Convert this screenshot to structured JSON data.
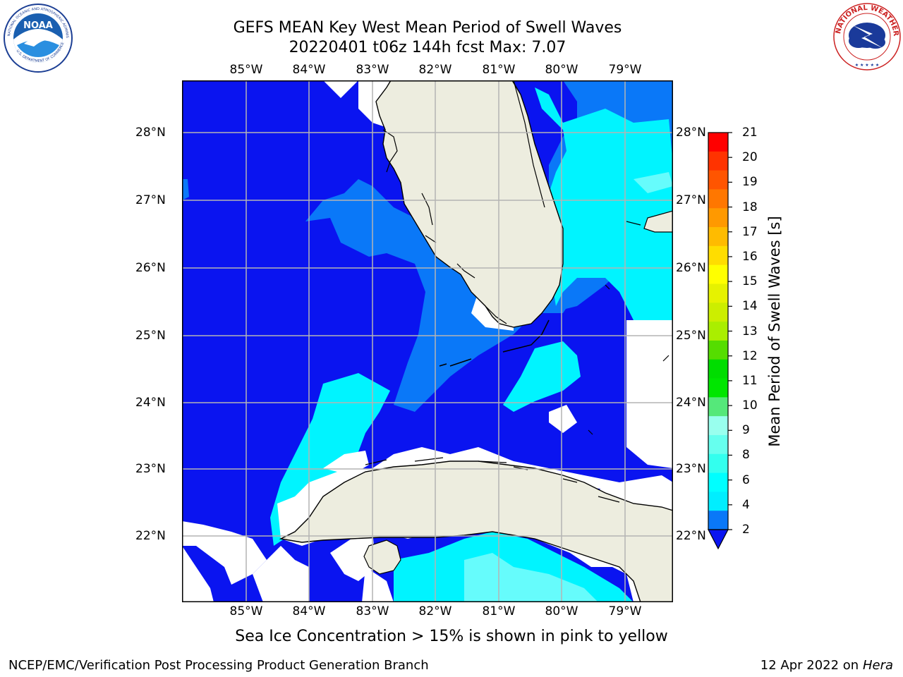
{
  "header": {
    "title_line1": "GEFS MEAN Key West Mean Period of Swell Waves",
    "title_line2": "20220401 t06z 144h fcst   Max: 7.07"
  },
  "map": {
    "lon_labels": [
      "85°W",
      "84°W",
      "83°W",
      "82°W",
      "81°W",
      "80°W",
      "79°W"
    ],
    "lat_labels": [
      "28°N",
      "27°N",
      "26°N",
      "25°N",
      "24°N",
      "23°N",
      "22°N"
    ],
    "colors": {
      "ocean_low": "#0a14f0",
      "ocean_mid": "#0a78f8",
      "ocean_high": "#00f4ff",
      "ocean_peak": "#66fcfc",
      "land": "#ededdf",
      "grid": "#b4b4b4"
    }
  },
  "colorbar": {
    "title": "Mean Period of Swell Waves [s]",
    "ticks": [
      "21",
      "20",
      "19",
      "18",
      "17",
      "16",
      "15",
      "14",
      "13",
      "12",
      "11",
      "10",
      "9",
      "8",
      "6",
      "4",
      "2"
    ],
    "colors": [
      "#ff0000",
      "#ff3300",
      "#ff5500",
      "#ff7700",
      "#ff9900",
      "#ffbb00",
      "#ffdd00",
      "#ffff00",
      "#e6f200",
      "#ccee00",
      "#aaee00",
      "#55dd00",
      "#00dd00",
      "#00e600",
      "#55e87a",
      "#99ffee",
      "#66ffee",
      "#33ffee",
      "#00ffff",
      "#00eeff",
      "#0a78f8"
    ]
  },
  "logos": {
    "left_text": "NOAA",
    "left_ring_text": "NATIONAL OCEANIC AND ATMOSPHERIC ADMINISTRATION",
    "left_ring_text_bottom": "U.S. DEPARTMENT OF COMMERCE",
    "right_ring_text": "NATIONAL WEATHER SERVICE"
  },
  "footer": {
    "note": "Sea Ice Concentration > 15% is shown in pink to yellow",
    "left": "NCEP/EMC/Verification Post Processing Product Generation Branch",
    "right_date": "12 Apr 2022 on",
    "right_host": "Hera"
  }
}
